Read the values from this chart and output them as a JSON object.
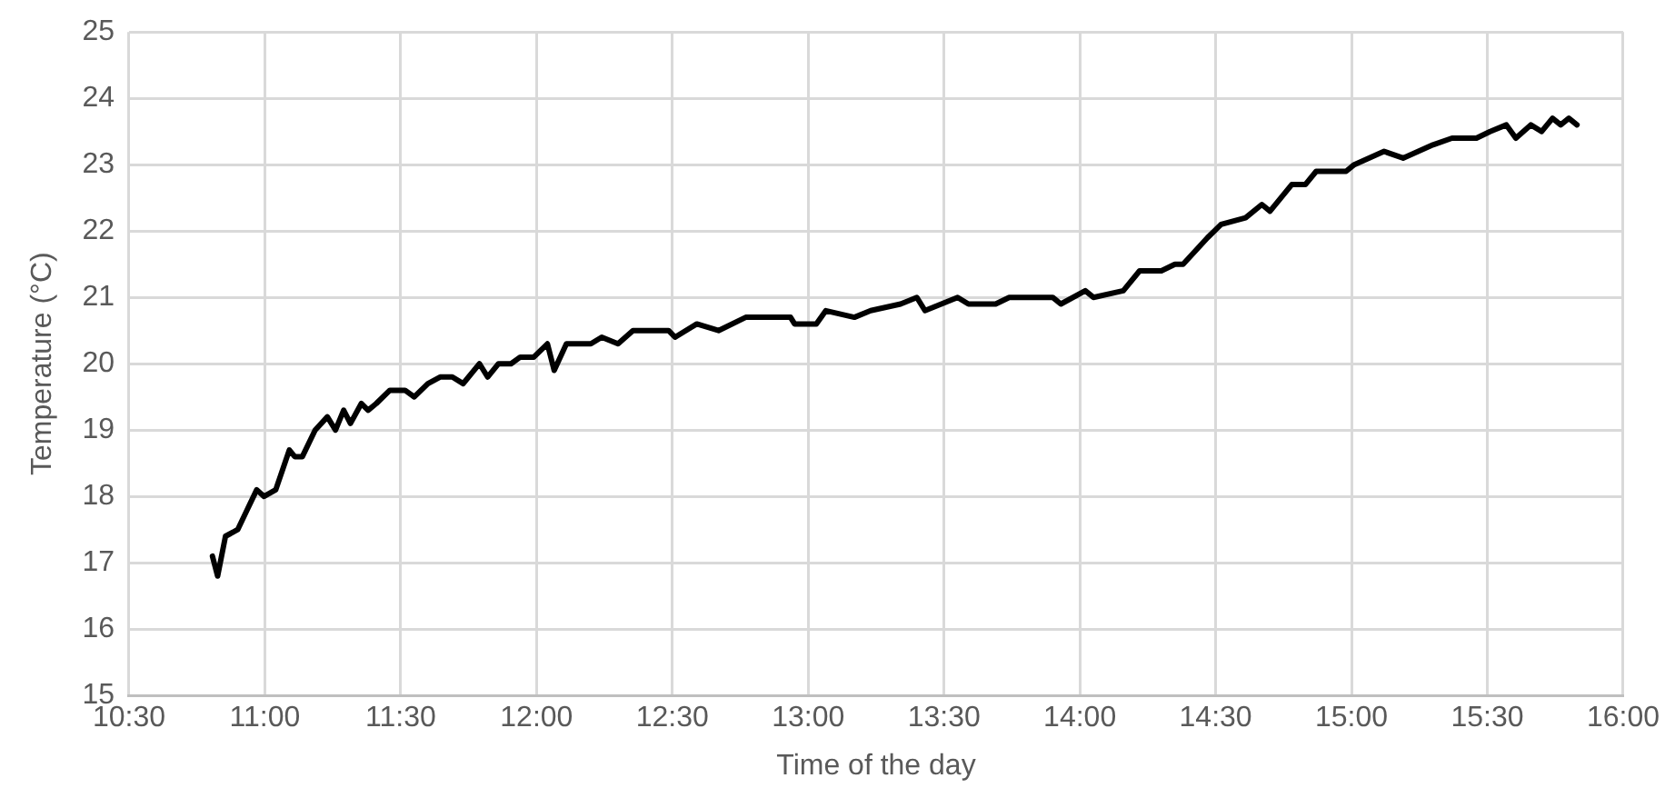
{
  "chart_data": {
    "type": "line",
    "xlabel": "Time of the day",
    "ylabel": "Temperature (°C)",
    "x": [
      10.807,
      10.826,
      10.855,
      10.9,
      10.935,
      10.97,
      10.997,
      11.04,
      11.09,
      11.11,
      11.138,
      11.185,
      11.23,
      11.26,
      11.29,
      11.315,
      11.355,
      11.38,
      11.41,
      11.46,
      11.516,
      11.55,
      11.6,
      11.645,
      11.69,
      11.73,
      11.79,
      11.82,
      11.86,
      11.906,
      11.94,
      11.99,
      12.04,
      12.065,
      12.11,
      12.2,
      12.24,
      12.3,
      12.355,
      12.486,
      12.51,
      12.59,
      12.67,
      12.77,
      12.935,
      12.95,
      13.03,
      13.065,
      13.17,
      13.23,
      13.34,
      13.4,
      13.43,
      13.55,
      13.59,
      13.69,
      13.74,
      13.9,
      13.93,
      14.02,
      14.05,
      14.16,
      14.22,
      14.3,
      14.35,
      14.38,
      14.47,
      14.52,
      14.61,
      14.67,
      14.7,
      14.78,
      14.83,
      14.87,
      14.98,
      15.01,
      15.12,
      15.19,
      15.3,
      15.37,
      15.46,
      15.51,
      15.57,
      15.605,
      15.66,
      15.7,
      15.74,
      15.77,
      15.8,
      15.83
    ],
    "series": [
      {
        "color": "#000000",
        "values": [
          17.1,
          16.8,
          17.4,
          17.5,
          17.8,
          18.1,
          18.0,
          18.1,
          18.7,
          18.6,
          18.6,
          19.0,
          19.2,
          19.0,
          19.3,
          19.1,
          19.4,
          19.3,
          19.4,
          19.6,
          19.6,
          19.5,
          19.7,
          19.8,
          19.8,
          19.7,
          20.0,
          19.8,
          20.0,
          20.0,
          20.1,
          20.1,
          20.3,
          19.9,
          20.3,
          20.3,
          20.4,
          20.3,
          20.5,
          20.5,
          20.4,
          20.6,
          20.5,
          20.7,
          20.7,
          20.6,
          20.6,
          20.8,
          20.7,
          20.8,
          20.9,
          21.0,
          20.8,
          21.0,
          20.9,
          20.9,
          21.0,
          21.0,
          20.9,
          21.1,
          21.0,
          21.1,
          21.4,
          21.4,
          21.5,
          21.5,
          21.9,
          22.1,
          22.2,
          22.4,
          22.3,
          22.7,
          22.7,
          22.9,
          22.9,
          23.0,
          23.2,
          23.1,
          23.3,
          23.4,
          23.4,
          23.5,
          23.6,
          23.4,
          23.6,
          23.5,
          23.7,
          23.6,
          23.7,
          23.6
        ]
      }
    ],
    "xlim": [
      10.5,
      16
    ],
    "xticks": [
      {
        "value": 10.5,
        "label": "10:30"
      },
      {
        "value": 11,
        "label": "11:00"
      },
      {
        "value": 11.5,
        "label": "11:30"
      },
      {
        "value": 12,
        "label": "12:00"
      },
      {
        "value": 12.5,
        "label": "12:30"
      },
      {
        "value": 13,
        "label": "13:00"
      },
      {
        "value": 13.5,
        "label": "13:30"
      },
      {
        "value": 14,
        "label": "14:00"
      },
      {
        "value": 14.5,
        "label": "14:30"
      },
      {
        "value": 15,
        "label": "15:00"
      },
      {
        "value": 15.5,
        "label": "15:30"
      },
      {
        "value": 16,
        "label": "16:00"
      }
    ],
    "ylim": [
      15,
      25
    ],
    "yticks": [
      15,
      16,
      17,
      18,
      19,
      20,
      21,
      22,
      23,
      24,
      25
    ],
    "grid": true,
    "legend": false,
    "marker": "none",
    "line_style": "solid"
  }
}
